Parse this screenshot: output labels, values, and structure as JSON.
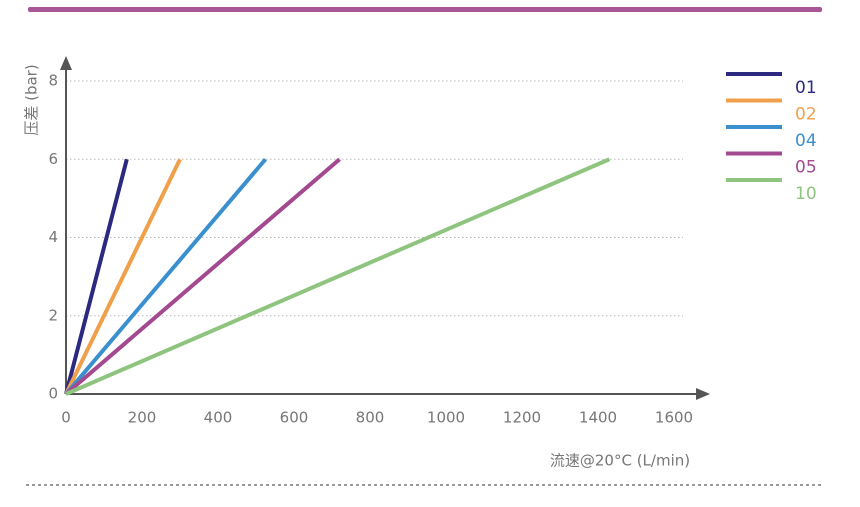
{
  "chart_data": {
    "type": "line",
    "y_label": "压差 (bar)",
    "x_label": "流速@20°C (L/min)",
    "xlim": [
      0,
      1600
    ],
    "xticks": [
      0,
      200,
      400,
      600,
      800,
      1000,
      1200,
      1400,
      1600
    ],
    "ylim": [
      0,
      8
    ],
    "yticks": [
      0,
      2,
      4,
      6,
      8
    ],
    "grid": true,
    "legend": "right",
    "series": [
      {
        "name": "01",
        "color": "#2b2a80",
        "x": [
          0,
          160
        ],
        "values": [
          0,
          6
        ]
      },
      {
        "name": "02",
        "color": "#f0a04b",
        "x": [
          0,
          300
        ],
        "values": [
          0,
          6
        ]
      },
      {
        "name": "04",
        "color": "#3a8fcf",
        "x": [
          0,
          525
        ],
        "values": [
          0,
          6
        ]
      },
      {
        "name": "05",
        "color": "#a3498f",
        "x": [
          0,
          720
        ],
        "values": [
          0,
          6
        ]
      },
      {
        "name": "10",
        "color": "#8fc47f",
        "x": [
          0,
          1430
        ],
        "values": [
          0,
          6
        ]
      }
    ]
  }
}
